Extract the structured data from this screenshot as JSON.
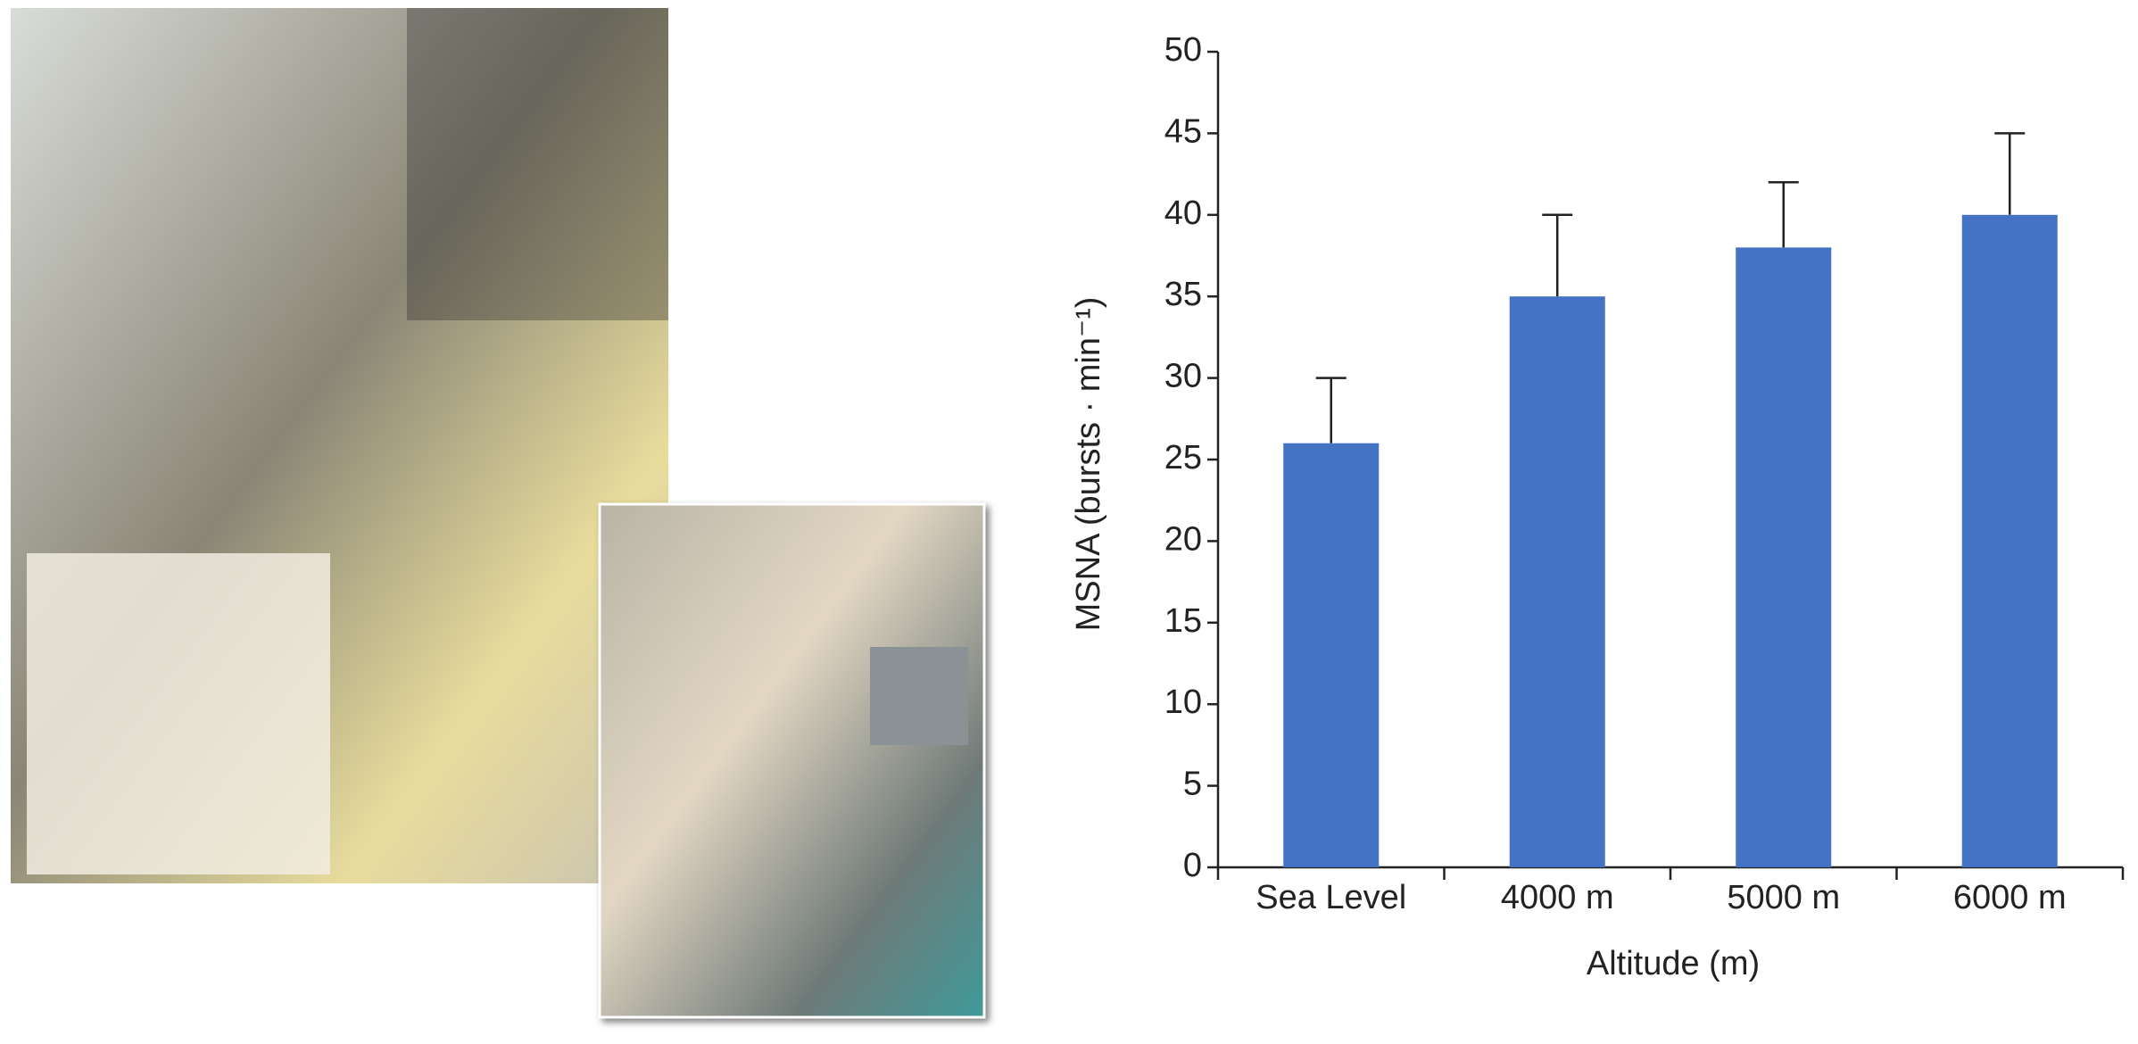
{
  "chart_data": {
    "type": "bar",
    "categories": [
      "Sea Level",
      "4000 m",
      "5000 m",
      "6000 m"
    ],
    "values": [
      26,
      35,
      38,
      40
    ],
    "errors": [
      4,
      5,
      4,
      5
    ],
    "color": "#4472c4",
    "x_label": "Altitude (m)",
    "y_label": "MSNA (bursts · min⁻¹)",
    "ylim": [
      0,
      50
    ],
    "yticks": [
      0,
      5,
      10,
      15,
      20,
      25,
      30,
      35,
      40,
      45,
      50
    ],
    "grid": false
  }
}
